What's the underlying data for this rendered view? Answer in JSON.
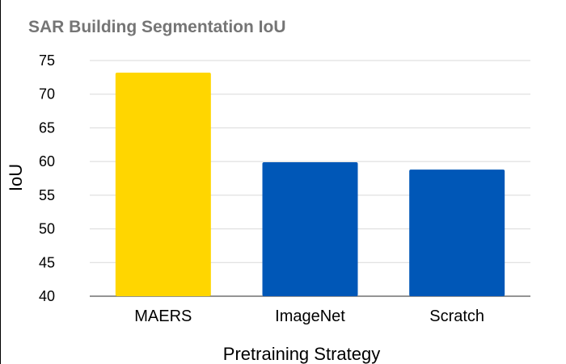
{
  "chart_data": {
    "type": "bar",
    "title": "SAR Building Segmentation IoU",
    "xlabel": "Pretraining Strategy",
    "ylabel": "IoU",
    "categories": [
      "MAERS",
      "ImageNet",
      "Scratch"
    ],
    "values": [
      73.2,
      59.9,
      58.8
    ],
    "bar_colors": [
      "#FFD600",
      "#0057B7",
      "#0057B7"
    ],
    "ylim": [
      40,
      75
    ],
    "yticks": [
      40,
      45,
      50,
      55,
      60,
      65,
      70,
      75
    ],
    "grid": true,
    "legend": "none"
  }
}
